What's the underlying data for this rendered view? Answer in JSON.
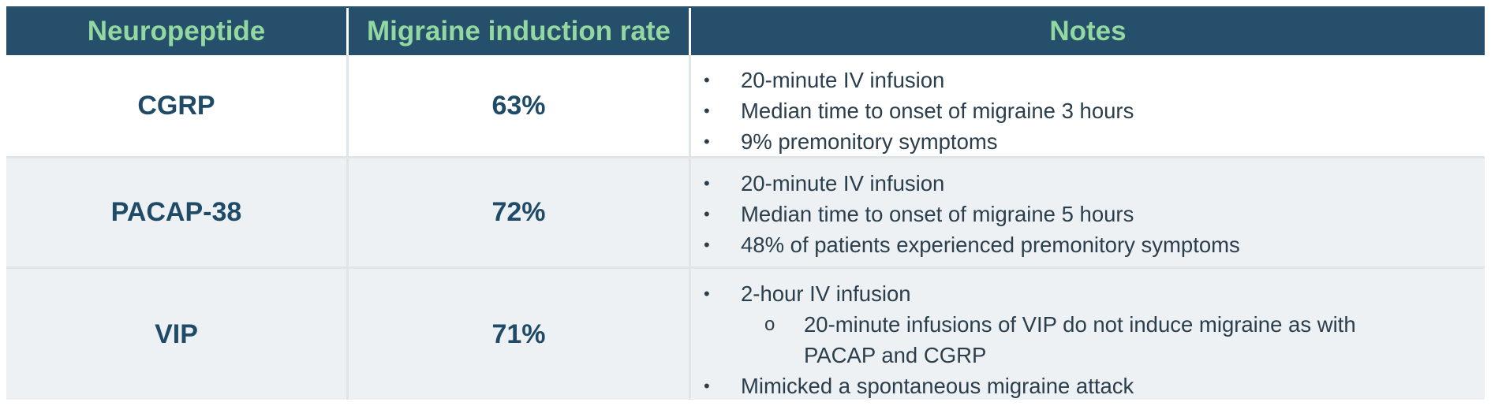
{
  "header": {
    "col1": "Neuropeptide",
    "col2": "Migraine induction rate",
    "col3": "Notes"
  },
  "rows": [
    {
      "neuropeptide": "CGRP",
      "rate": "63%",
      "notes": [
        "20-minute IV infusion",
        "Median time to onset of migraine 3 hours",
        "9% premonitory symptoms"
      ]
    },
    {
      "neuropeptide": "PACAP-38",
      "rate": "72%",
      "notes": [
        "20-minute IV infusion",
        "Median time to onset of migraine 5 hours",
        "48% of patients experienced premonitory symptoms"
      ]
    },
    {
      "neuropeptide": "VIP",
      "rate": "71%",
      "notes": [
        "2-hour IV infusion",
        "Mimicked a spontaneous migraine attack"
      ],
      "subnote": "20-minute infusions of VIP do not induce migraine as with PACAP and CGRP"
    }
  ],
  "symbols": {
    "bullet": "•",
    "sub_bullet": "o"
  },
  "colors": {
    "header_bg": "#254f6a",
    "header_text": "#93d8a0",
    "body_text": "#1f4b67",
    "alt_row_bg": "#edf1f4"
  }
}
